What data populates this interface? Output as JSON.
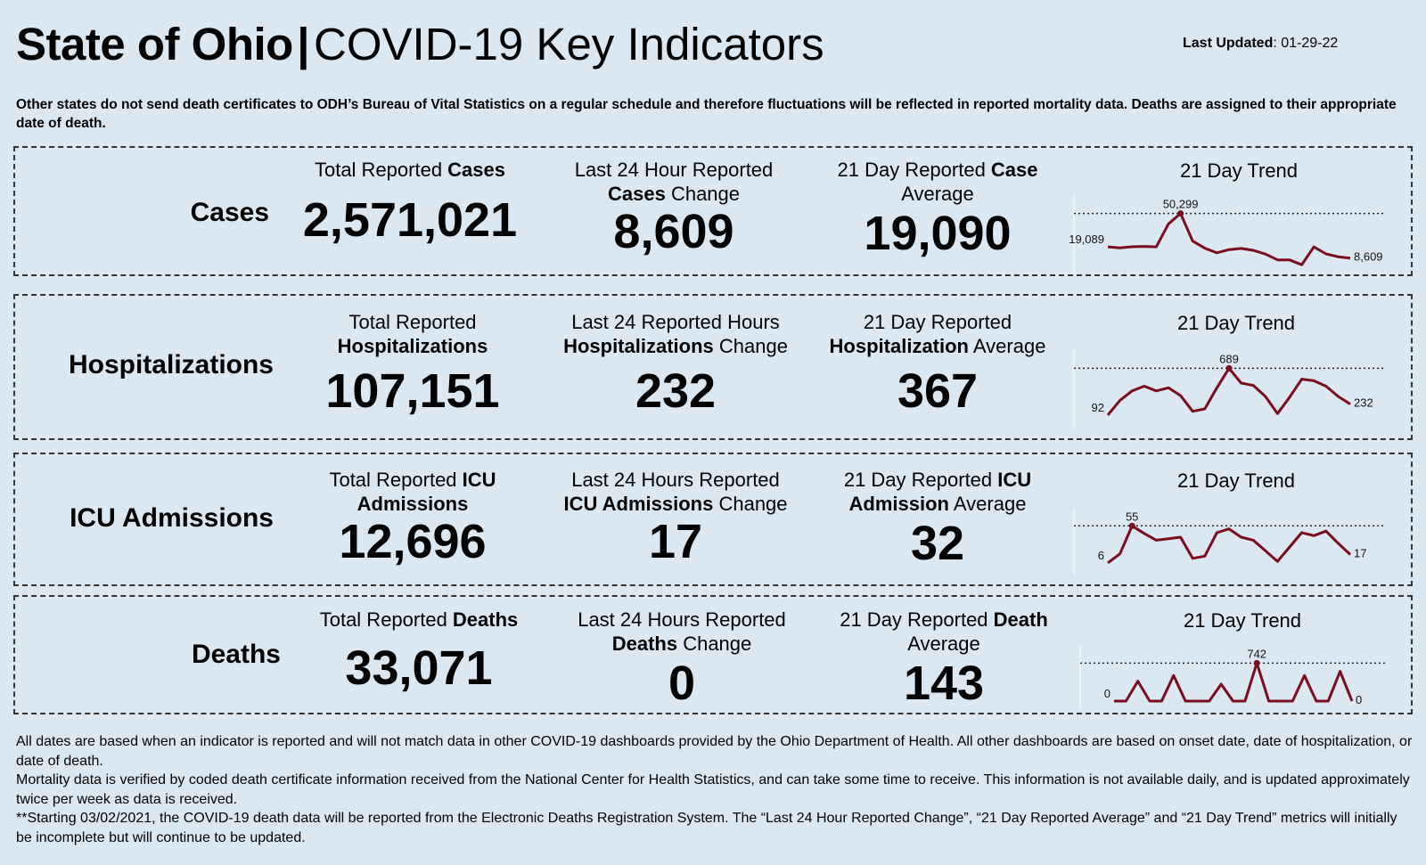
{
  "header": {
    "title_bold": "State of Ohio",
    "title_sep": "|",
    "title_rest": "COVID-19  Key Indicators",
    "updated_label": "Last Updated",
    "updated_value": ": 01-29-22"
  },
  "top_note": "Other states do not send death certificates to ODH’s Bureau of Vital Statistics on a regular schedule and therefore fluctuations will be reflected in reported mortality data. Deaths are assigned to their appropriate date of death.",
  "rows": [
    {
      "id": "cases",
      "label": "Cases",
      "m1": {
        "pre": "Total Reported ",
        "b1": "Cases",
        "mid": "",
        "b2": "",
        "post": "",
        "value": "2,571,021"
      },
      "m2": {
        "pre": "Last 24 Hour Reported",
        "b1": "Cases",
        "mid": " Change",
        "value": "8,609"
      },
      "m3": {
        "pre": "21 Day Reported ",
        "b1": "Case",
        "mid": "Average",
        "value": "19,090"
      },
      "trend_title": "21 Day Trend",
      "trend": {
        "start_label": "19,089",
        "peak_label": "50,299",
        "end_label": "8,609",
        "values": [
          19089,
          18200,
          19200,
          19500,
          19100,
          40500,
          50299,
          24500,
          17800,
          13500,
          16500,
          17600,
          15800,
          12300,
          6900,
          6800,
          2300,
          19000,
          12500,
          9800,
          8609
        ],
        "min": 0,
        "max": 55000
      }
    },
    {
      "id": "hospitalizations",
      "label": "Hospitalizations",
      "m1": {
        "pre": "Total Reported",
        "b1": "Hospitalizations",
        "mid": "",
        "value": "107,151"
      },
      "m2": {
        "pre": "Last 24 Reported Hours",
        "b1": "Hospitalizations",
        "mid": " Change",
        "value": "232"
      },
      "m3": {
        "pre": "21 Day Reported",
        "b1": "Hospitalization",
        "mid": " Average",
        "value": "367"
      },
      "trend_title": "21 Day Trend",
      "trend": {
        "start_label": "92",
        "peak_label": "689",
        "end_label": "232",
        "values": [
          92,
          280,
          400,
          460,
          400,
          440,
          340,
          140,
          170,
          440,
          689,
          500,
          470,
          330,
          110,
          320,
          550,
          530,
          460,
          330,
          232
        ],
        "min": 0,
        "max": 750
      }
    },
    {
      "id": "icu",
      "label": "ICU Admissions",
      "m1": {
        "pre": "Total Reported ",
        "b1": "ICU",
        "mid": "",
        "b2": "Admissions",
        "value": "12,696"
      },
      "m2": {
        "pre": "Last 24 Hours Reported",
        "b1": "ICU Admissions",
        "mid": " Change",
        "value": "17"
      },
      "m3": {
        "pre": "21 Day Reported ",
        "b1": "ICU",
        "mid": "",
        "b2": "Admission",
        "post": " Average",
        "value": "32"
      },
      "trend_title": "21 Day Trend",
      "trend": {
        "start_label": "6",
        "peak_label": "55",
        "end_label": "17",
        "values": [
          6,
          18,
          55,
          45,
          36,
          38,
          40,
          12,
          15,
          46,
          51,
          40,
          36,
          22,
          8,
          27,
          46,
          42,
          48,
          32,
          17
        ],
        "min": 0,
        "max": 60
      }
    },
    {
      "id": "deaths",
      "label": "Deaths",
      "m1": {
        "pre": "Total Reported ",
        "b1": "Deaths",
        "mid": "",
        "value": "33,071"
      },
      "m2": {
        "pre": "Last 24 Hours Reported",
        "b1": "Deaths",
        "mid": " Change",
        "value": "0"
      },
      "m3": {
        "pre": "21 Day Reported ",
        "b1": "Death",
        "mid": "Average",
        "value": "143"
      },
      "trend_title": "21 Day Trend",
      "trend": {
        "start_label": "0",
        "peak_label": "742",
        "end_label": "0",
        "values": [
          0,
          0,
          390,
          0,
          0,
          500,
          0,
          0,
          0,
          330,
          0,
          0,
          742,
          0,
          0,
          0,
          500,
          0,
          0,
          580,
          0
        ],
        "min": 0,
        "max": 800
      }
    }
  ],
  "colors": {
    "trend_line": "#7a0c1e",
    "background": "#dbe8f2"
  },
  "footer": [
    "All dates are based when an indicator is reported and will not match data in other COVID-19 dashboards provided by the Ohio Department of Health. All other dashboards are based on onset date, date of hospitalization, or date of death.",
    "Mortality data is verified by coded death certificate information received from the National Center for Health Statistics, and can take some time to receive. This information is not available daily, and is updated approximately twice per week as data is received.",
    "**Starting 03/02/2021, the COVID-19 death data will be reported from the Electronic Deaths Registration System. The “Last 24 Hour Reported Change”, “21 Day Reported Average” and “21 Day Trend” metrics will initially be incomplete but will continue to be updated."
  ]
}
